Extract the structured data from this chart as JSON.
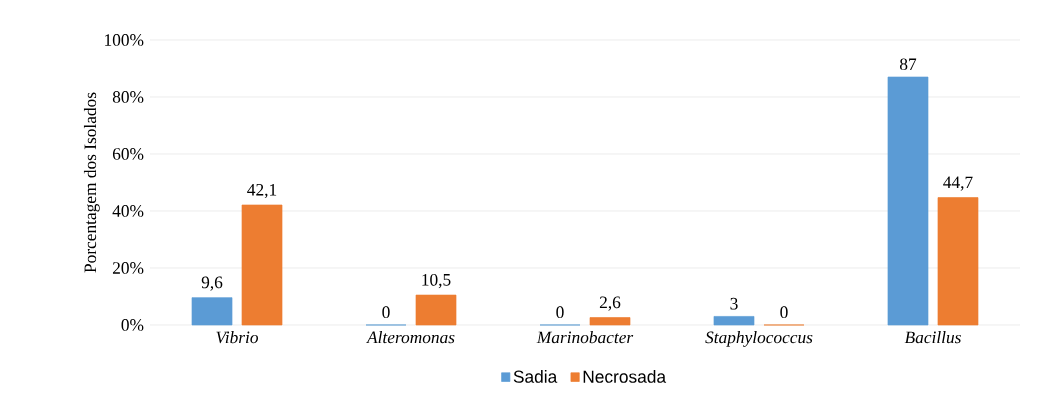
{
  "chart_data": {
    "type": "bar",
    "ylabel": "Porcentagem dos Isolados",
    "categories": [
      "Vibrio",
      "Alteromonas",
      "Marinobacter",
      "Staphylococcus",
      "Bacillus"
    ],
    "series": [
      {
        "name": "Sadia",
        "color": "#5b9bd5",
        "values": [
          9.6,
          0,
          0,
          3,
          87
        ],
        "value_labels": [
          "9,6",
          "0",
          "0",
          "3",
          "87"
        ]
      },
      {
        "name": "Necrosada",
        "color": "#ed7d31",
        "values": [
          42.1,
          10.5,
          2.6,
          0,
          44.7
        ],
        "value_labels": [
          "42,1",
          "10,5",
          "2,6",
          "0",
          "44,7"
        ]
      }
    ],
    "ylim": [
      0,
      100
    ],
    "yticks": [
      {
        "value": 0,
        "label": "0%"
      },
      {
        "value": 20,
        "label": "20%"
      },
      {
        "value": 40,
        "label": "40%"
      },
      {
        "value": 60,
        "label": "60%"
      },
      {
        "value": 80,
        "label": "80%"
      },
      {
        "value": 100,
        "label": "100%"
      }
    ],
    "grid": "y",
    "legend": "bottom"
  }
}
